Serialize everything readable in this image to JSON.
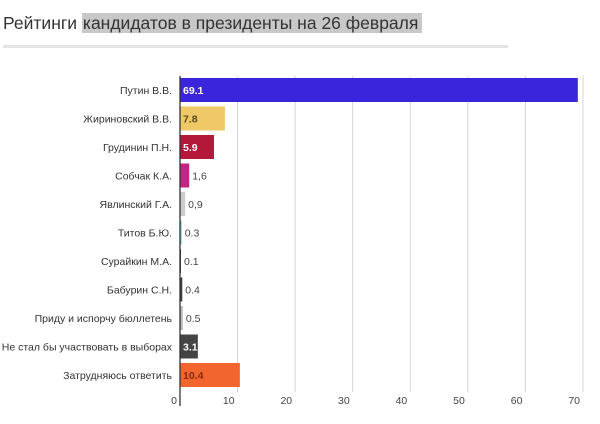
{
  "chart_data": {
    "type": "bar",
    "orientation": "horizontal",
    "title_plain": "Рейтинги",
    "title_highlighted": "кандидатов в президенты на 26 февраля",
    "categories": [
      "Путин В.В.",
      "Жириновский В.В.",
      "Грудинин П.Н.",
      "Собчак К.А.",
      "Явлинский Г.А.",
      "Титов Б.Ю.",
      "Сурайкин М.А.",
      "Бабурин С.Н.",
      "Приду и испорчу бюллетень",
      "Не стал бы участвовать в выборах",
      "Затрудняюсь ответить"
    ],
    "values": [
      69.1,
      7.8,
      5.9,
      1.6,
      0.9,
      0.3,
      0.1,
      0.4,
      0.5,
      3.1,
      10.4
    ],
    "value_labels": [
      "69.1",
      "7.8",
      "5.9",
      "1,6",
      "0,9",
      "0.3",
      "0.1",
      "0.4",
      "0.5",
      "3.1",
      "10.4"
    ],
    "colors": [
      "#3a24dc",
      "#efc867",
      "#b3173a",
      "#c02683",
      "#cccccc",
      "#86c8e2",
      "#333333",
      "#3d3d3d",
      "#bdbdbd",
      "#444444",
      "#f2652f"
    ],
    "label_colors": [
      "#ffffff",
      "#5a4a1a",
      "#ffffff",
      "#444444",
      "#444444",
      "#444444",
      "#444444",
      "#444444",
      "#444444",
      "#ffffff",
      "#8a2a10"
    ],
    "xlim": [
      0,
      70
    ],
    "xticks": [
      "0",
      "10",
      "20",
      "30",
      "40",
      "50",
      "60",
      "70"
    ],
    "grid": true,
    "xlabel": "",
    "ylabel": ""
  }
}
